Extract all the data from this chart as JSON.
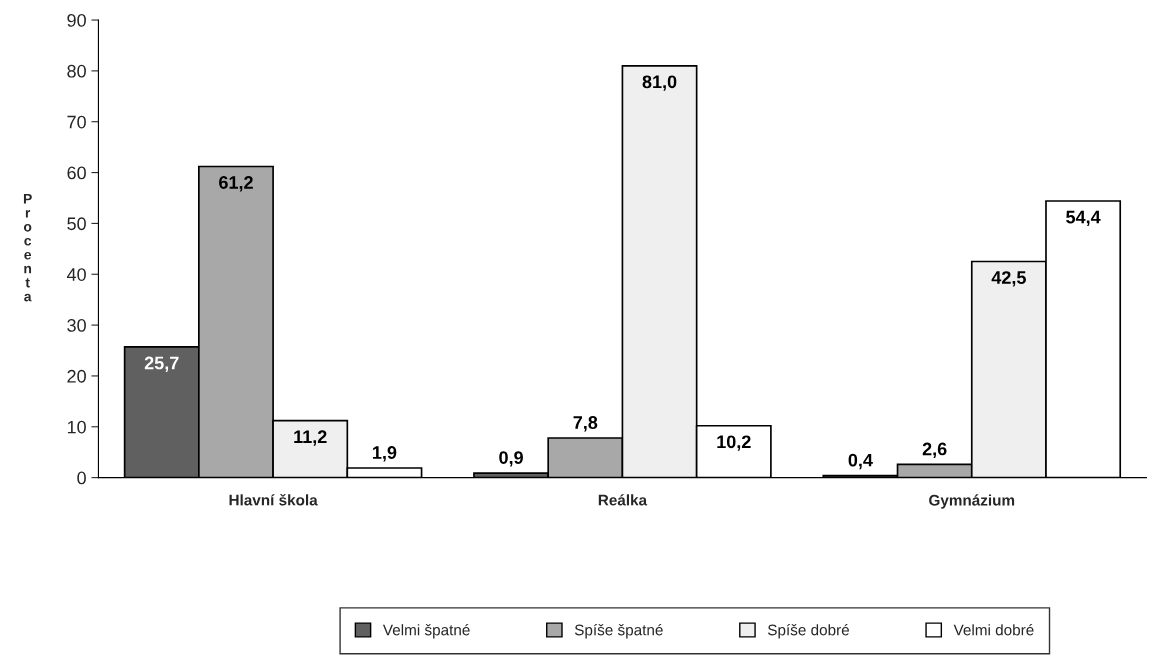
{
  "chart_data": {
    "type": "bar",
    "ylabel": "Procenta",
    "categories": [
      "Hlavní škola",
      "Reálka",
      "Gymnázium"
    ],
    "series": [
      {
        "name": "Velmi špatné",
        "color": "#606060",
        "values": [
          25.7,
          0.9,
          0.4
        ],
        "value_labels": [
          "25,7",
          "0,9",
          "0,4"
        ]
      },
      {
        "name": "Spíše špatné",
        "color": "#a8a8a8",
        "values": [
          61.2,
          7.8,
          2.6
        ],
        "value_labels": [
          "61,2",
          "7,8",
          "2,6"
        ]
      },
      {
        "name": "Spíše dobré",
        "color": "#efefef",
        "values": [
          11.2,
          81.0,
          42.5
        ],
        "value_labels": [
          "11,2",
          "81,0",
          "42,5"
        ]
      },
      {
        "name": "Velmi dobré",
        "color": "#ffffff",
        "values": [
          1.9,
          10.2,
          54.4
        ],
        "value_labels": [
          "1,9",
          "10,2",
          "54,4"
        ]
      }
    ],
    "ylim": [
      0,
      90
    ],
    "yticks": [
      0,
      10,
      20,
      30,
      40,
      50,
      60,
      70,
      80,
      90
    ],
    "grid": false,
    "legend": "bottom"
  }
}
